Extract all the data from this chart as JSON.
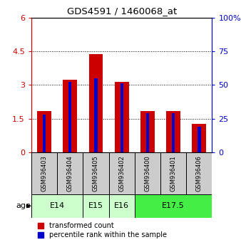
{
  "title": "GDS4591 / 1460068_at",
  "samples": [
    "GSM936403",
    "GSM936404",
    "GSM936405",
    "GSM936402",
    "GSM936400",
    "GSM936401",
    "GSM936406"
  ],
  "transformed_count": [
    1.82,
    3.22,
    4.38,
    3.13,
    1.82,
    1.85,
    1.25
  ],
  "percentile_rank_pct": [
    28.0,
    52.0,
    55.0,
    51.0,
    29.0,
    29.0,
    19.0
  ],
  "red_color": "#cc0000",
  "blue_color": "#0000cc",
  "ylim_left": [
    0,
    6
  ],
  "ylim_right": [
    0,
    100
  ],
  "yticks_left": [
    0,
    1.5,
    3.0,
    4.5,
    6.0
  ],
  "ytick_labels_left": [
    "0",
    "1.5",
    "3",
    "4.5",
    "6"
  ],
  "yticks_right": [
    0,
    25,
    50,
    75,
    100
  ],
  "ytick_labels_right": [
    "0",
    "25",
    "50",
    "75",
    "100%"
  ],
  "age_groups": [
    {
      "label": "E14",
      "spans": [
        0,
        1
      ],
      "color": "#ccffcc"
    },
    {
      "label": "E15",
      "spans": [
        2
      ],
      "color": "#ccffcc"
    },
    {
      "label": "E16",
      "spans": [
        3
      ],
      "color": "#ccffcc"
    },
    {
      "label": "E17.5",
      "spans": [
        4,
        5,
        6
      ],
      "color": "#44ee44"
    }
  ],
  "age_group_boxes": [
    {
      "label": "E14",
      "start": 0,
      "end": 2,
      "color": "#ccffcc"
    },
    {
      "label": "E15",
      "start": 2,
      "end": 3,
      "color": "#ccffcc"
    },
    {
      "label": "E16",
      "start": 3,
      "end": 4,
      "color": "#ccffcc"
    },
    {
      "label": "E17.5",
      "start": 4,
      "end": 7,
      "color": "#44ee44"
    }
  ],
  "red_bar_width": 0.55,
  "blue_bar_width": 0.12,
  "legend_red": "transformed count",
  "legend_blue": "percentile rank within the sample",
  "background_plot": "#ffffff",
  "sample_box_color": "#cccccc"
}
